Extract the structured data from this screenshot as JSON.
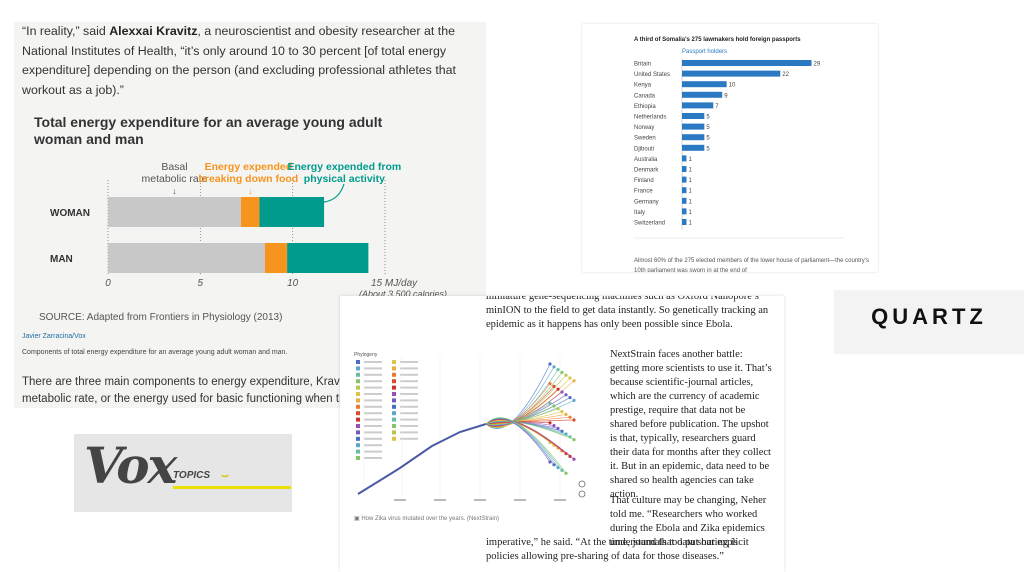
{
  "vox_article": {
    "quote_lines": [
      "“In reality,” said",
      "Alexxai Kravitz",
      ", a neuroscientist and obesity researcher at the",
      "National Institutes of Health, “it’s only around 10 to 30 percent [of total energy",
      "expenditure] depending on the person (and excluding professional athletes that",
      "workout as a job).”"
    ],
    "chart_title": "Total energy expenditure for an average young adult woman and man",
    "source": "SOURCE: Adapted from Frontiers in Physiology (2013)",
    "credit": "Javier Zarracina/Vox",
    "caption": "Components of total energy expenditure for an average young adult woman and man.",
    "body_lines": [
      "There are three main components to energy expenditure, Kravitz e",
      "metabolic rate, or the energy used for basic functioning when the"
    ]
  },
  "chart_data": [
    {
      "type": "bar",
      "stacked": true,
      "orientation": "horizontal",
      "title": "Total energy expenditure for an average young adult woman and man",
      "categories": [
        "WOMAN",
        "MAN"
      ],
      "series": [
        {
          "name": "Basal metabolic rate",
          "color": "#c8c8c8",
          "values": [
            7.2,
            8.5
          ]
        },
        {
          "name": "Energy expended breaking down food",
          "color": "#f7941e",
          "values": [
            1.0,
            1.2
          ]
        },
        {
          "name": "Energy expended from physical activity",
          "color": "#009b8d",
          "values": [
            3.5,
            4.4
          ]
        }
      ],
      "legend_labels": [
        [
          "Basal",
          "metabolic rate"
        ],
        [
          "Energy expended",
          "breaking down food"
        ],
        [
          "Energy expended from",
          "physical activity"
        ]
      ],
      "xticks": [
        "0",
        "5",
        "10"
      ],
      "xtick_values": [
        0,
        5,
        10
      ],
      "xmax_label": "15 MJ/day",
      "xmax_sublabel": "(About 3,500 calories)",
      "xlim": [
        0,
        15
      ]
    },
    {
      "type": "bar",
      "orientation": "horizontal",
      "title": "A third of Somalia's 275 lawmakers hold foreign passports",
      "series_label": "Passport holders",
      "categories": [
        "Britain",
        "United States",
        "Kenya",
        "Canada",
        "Ethiopia",
        "Netherlands",
        "Norway",
        "Sweden",
        "Djibouti",
        "Australia",
        "Denmark",
        "Finland",
        "France",
        "Germany",
        "Italy",
        "Switzerland"
      ],
      "values": [
        29,
        22,
        10,
        9,
        7,
        5,
        5,
        5,
        5,
        1,
        1,
        1,
        1,
        1,
        1,
        1
      ],
      "value_labels": [
        "29",
        "22",
        "10",
        "9",
        "7",
        "5",
        "5",
        "5",
        "5",
        "1",
        "1",
        "1",
        "1",
        "1",
        "1",
        "1"
      ],
      "color": "#2b79c2",
      "xlim": [
        0,
        30
      ]
    }
  ],
  "somalia": {
    "footer": "Almost 60% of the 275 elected members of the lower house of parliament—the country’s 10th parliament was sworn in at the end of"
  },
  "quartz": {
    "logo_text": "QUARTZ"
  },
  "vox_topics": {
    "logo_text": "Vox",
    "topics_label": "TOPICS",
    "smile": "⌣"
  },
  "nextstrain": {
    "top_text": "miniature gene-sequencing machines such as Oxford Nanopore’s minION to the field to get data instantly. So genetically tracking an epidemic as it happens has only been possible since Ebola.",
    "right_text": "NextStrain faces another battle: getting more scientists to use it. That’s because scientific-journal articles, which are the currency of academic prestige, require that data not be shared before publication. The upshot is that, typically, researchers guard their data for months after they collect it. But in an epidemic, data need to be shared so health agencies can take action.",
    "right_text2": "That culture may be changing, Neher told me. “Researchers who worked during the Ebola and Zika epidemics understand that data sharing is",
    "bottom_text": "imperative,” he said. “At the time, journals too put out explicit policies allowing pre-sharing of data for those diseases.”",
    "figure_caption": "How Zika virus mutated over the years. (NextStrain)",
    "legend_title": "Phylogeny"
  }
}
